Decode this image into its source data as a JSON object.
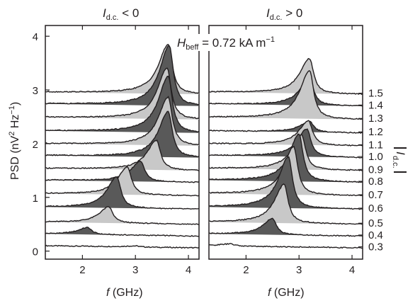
{
  "chart_data": {
    "type": "area",
    "ylabel": "PSD (nV² Hz⁻¹)",
    "ylim": [
      -0.15,
      4.2
    ],
    "yticks": [
      0,
      1,
      2,
      3,
      4
    ],
    "annotation": "H_beff = 0.72 kA m⁻¹",
    "right_label": "|I_d.c.|",
    "currents": [
      "0.3",
      "0.4",
      "0.5",
      "0.6",
      "0.7",
      "0.8",
      "0.9",
      "1.0",
      "1.1",
      "1.2",
      "1.3",
      "1.4",
      "1.5"
    ],
    "baseline_offsets": [
      0.06,
      0.28,
      0.5,
      0.78,
      1.03,
      1.28,
      1.5,
      1.74,
      1.96,
      2.2,
      2.45,
      2.7,
      2.92
    ],
    "panels": [
      {
        "title_prefix": "I",
        "title_sub": "d.c.",
        "title_suffix": " < 0",
        "xlabel_prefix": "f",
        "xlabel_suffix": " (GHz)",
        "xlim": [
          1.3,
          4.2
        ],
        "xticks": [
          2,
          3,
          4
        ],
        "series": [
          {
            "current": "0.3",
            "peak_f": 3.0,
            "height": 0.02,
            "fill": "#ffffff"
          },
          {
            "current": "0.4",
            "peak_f": 2.1,
            "height": 0.13,
            "fill": "#595959"
          },
          {
            "current": "0.5",
            "peak_f": 2.5,
            "height": 0.3,
            "fill": "#c8c8c8"
          },
          {
            "current": "0.6",
            "peak_f": 2.65,
            "height": 0.58,
            "fill": "#595959"
          },
          {
            "current": "0.7",
            "peak_f": 2.85,
            "height": 0.52,
            "fill": "#c8c8c8"
          },
          {
            "current": "0.8",
            "peak_f": 3.1,
            "height": 0.38,
            "fill": "#595959"
          },
          {
            "current": "0.9",
            "peak_f": 3.4,
            "height": 0.55,
            "fill": "#c8c8c8"
          },
          {
            "current": "1.0",
            "peak_f": 3.62,
            "height": 0.85,
            "fill": "#595959"
          },
          {
            "current": "1.1",
            "peak_f": 3.62,
            "height": 0.9,
            "fill": "#c8c8c8"
          },
          {
            "current": "1.2",
            "peak_f": 3.62,
            "height": 1.05,
            "fill": "#595959"
          },
          {
            "current": "1.3",
            "peak_f": 3.6,
            "height": 0.95,
            "fill": "#c8c8c8"
          },
          {
            "current": "1.4",
            "peak_f": 3.64,
            "height": 1.12,
            "fill": "#595959"
          },
          {
            "current": "1.5",
            "peak_f": 3.62,
            "height": 0.92,
            "fill": "#c8c8c8"
          }
        ]
      },
      {
        "title_prefix": "I",
        "title_sub": "d.c.",
        "title_suffix": " > 0",
        "xlabel_prefix": "f",
        "xlabel_suffix": " (GHz)",
        "xlim": [
          1.3,
          4.2
        ],
        "xticks": [
          2,
          3,
          4
        ],
        "series": [
          {
            "current": "0.3",
            "peak_f": 1.7,
            "height": 0.04,
            "fill": "#ffffff"
          },
          {
            "current": "0.4",
            "peak_f": 2.5,
            "height": 0.3,
            "fill": "#595959"
          },
          {
            "current": "0.5",
            "peak_f": 2.72,
            "height": 0.72,
            "fill": "#c8c8c8"
          },
          {
            "current": "0.6",
            "peak_f": 2.8,
            "height": 0.96,
            "fill": "#595959"
          },
          {
            "current": "0.7",
            "peak_f": 2.9,
            "height": 0.9,
            "fill": "#c8c8c8"
          },
          {
            "current": "0.8",
            "peak_f": 3.0,
            "height": 0.88,
            "fill": "#595959"
          },
          {
            "current": "0.9",
            "peak_f": 3.05,
            "height": 0.65,
            "fill": "#c8c8c8"
          },
          {
            "current": "1.0",
            "peak_f": 3.15,
            "height": 0.52,
            "fill": "#595959"
          },
          {
            "current": "1.1",
            "peak_f": 3.18,
            "height": 0.45,
            "fill": "#c8c8c8"
          },
          {
            "current": "1.2",
            "peak_f": 3.2,
            "height": 0.2,
            "fill": "#595959"
          },
          {
            "current": "1.3",
            "peak_f": 3.2,
            "height": 0.9,
            "fill": "#c8c8c8"
          },
          {
            "current": "1.4",
            "peak_f": 3.2,
            "height": 0.5,
            "fill": "#595959"
          },
          {
            "current": "1.5",
            "peak_f": 3.2,
            "height": 0.65,
            "fill": "#c8c8c8"
          }
        ]
      }
    ]
  }
}
